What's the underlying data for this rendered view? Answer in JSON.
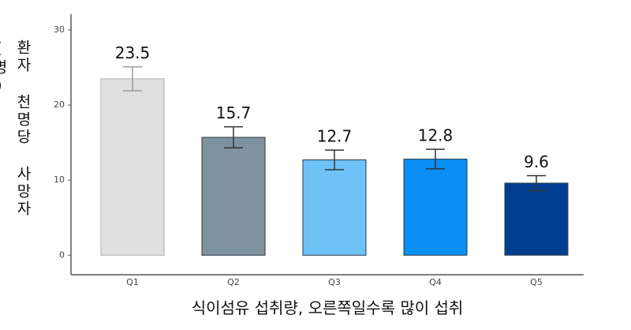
{
  "chart_data": {
    "type": "bar",
    "xlabel": "식이섬유 섭취량, 오른쪽일수록 많이 섭취",
    "ylabel": "환자 천명당 사망자(명)",
    "categories": [
      "Q1",
      "Q2",
      "Q3",
      "Q4",
      "Q5"
    ],
    "values": [
      23.5,
      15.7,
      12.7,
      12.8,
      9.6
    ],
    "errors": [
      1.6,
      1.4,
      1.3,
      1.3,
      1.0
    ],
    "colors": [
      "#e0e0e0",
      "#7f929f",
      "#6ec2f7",
      "#0a8ff5",
      "#003f8f"
    ],
    "ylim": [
      -2.6,
      32.1
    ],
    "yticks": [
      0,
      10,
      20,
      30
    ]
  }
}
